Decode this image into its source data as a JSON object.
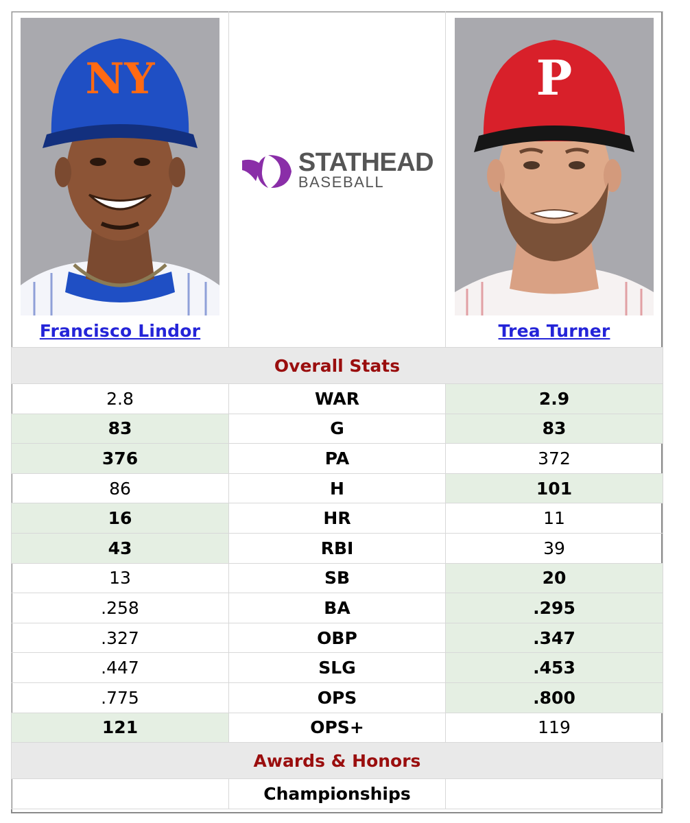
{
  "players": [
    {
      "name": "Francisco Lindor",
      "team": "Mets"
    },
    {
      "name": "Trea Turner",
      "team": "Phillies"
    }
  ],
  "logo": {
    "top": "STATHEAD",
    "bottom": "BASEBALL",
    "color": "#8a2ea8"
  },
  "sections": {
    "overall": "Overall Stats",
    "awards": "Awards & Honors"
  },
  "stats": [
    {
      "label": "WAR",
      "p1": "2.8",
      "p2": "2.9",
      "winner": "p2"
    },
    {
      "label": "G",
      "p1": "83",
      "p2": "83",
      "winner": "both"
    },
    {
      "label": "PA",
      "p1": "376",
      "p2": "372",
      "winner": "p1"
    },
    {
      "label": "H",
      "p1": "86",
      "p2": "101",
      "winner": "p2"
    },
    {
      "label": "HR",
      "p1": "16",
      "p2": "11",
      "winner": "p1"
    },
    {
      "label": "RBI",
      "p1": "43",
      "p2": "39",
      "winner": "p1"
    },
    {
      "label": "SB",
      "p1": "13",
      "p2": "20",
      "winner": "p2"
    },
    {
      "label": "BA",
      "p1": ".258",
      "p2": ".295",
      "winner": "p2"
    },
    {
      "label": "OBP",
      "p1": ".327",
      "p2": ".347",
      "winner": "p2"
    },
    {
      "label": "SLG",
      "p1": ".447",
      "p2": ".453",
      "winner": "p2"
    },
    {
      "label": "OPS",
      "p1": ".775",
      "p2": ".800",
      "winner": "p2"
    },
    {
      "label": "OPS+",
      "p1": "121",
      "p2": "119",
      "winner": "p1"
    }
  ],
  "awards": {
    "championships_label": "Championships"
  },
  "colors": {
    "link": "#2424d8",
    "section_text": "#9a0e0e",
    "winner_bg": "#e5efe3",
    "mets_blue": "#1f4fc4",
    "mets_orange": "#ff6a13",
    "phillies_red": "#d8202a"
  }
}
